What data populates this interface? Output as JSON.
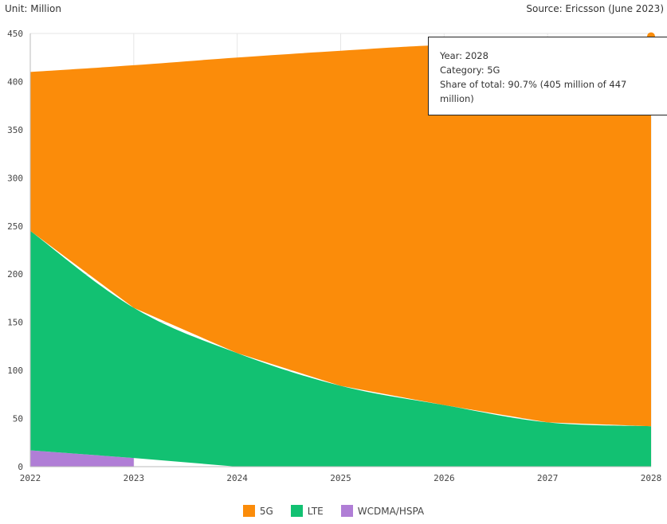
{
  "header": {
    "unit": "Unit: Million",
    "source": "Source: Ericsson (June 2023)"
  },
  "tooltip": {
    "year": "Year: 2028",
    "category": "Category: 5G",
    "share_line1": "Share of total: 90.7% (405 million of 447",
    "share_line2": "million)"
  },
  "colors": {
    "5G": "#fb8c0a",
    "LTE": "#12c172",
    "WCDMA/HSPA": "#b07ed6",
    "grid": "#e6e6e6"
  },
  "chart_data": {
    "type": "area",
    "stacked": true,
    "x": [
      "2022",
      "2023",
      "2024",
      "2025",
      "2026",
      "2027",
      "2028"
    ],
    "ylim": [
      0,
      450
    ],
    "yticks": [
      0,
      50,
      100,
      150,
      200,
      250,
      300,
      350,
      400,
      450
    ],
    "series": [
      {
        "name": "WCDMA/HSPA",
        "values": [
          17,
          9,
          0,
          0,
          0,
          0,
          0
        ]
      },
      {
        "name": "LTE",
        "values": [
          228,
          156,
          118,
          84,
          64,
          46,
          42
        ]
      },
      {
        "name": "5G",
        "values": [
          165,
          252,
          307,
          348,
          374,
          393,
          405
        ]
      }
    ],
    "legend": [
      "5G",
      "LTE",
      "WCDMA/HSPA"
    ],
    "legend_position": "bottom",
    "grid": true,
    "highlight": {
      "x": "2028",
      "series": "5G",
      "total": 447
    }
  }
}
